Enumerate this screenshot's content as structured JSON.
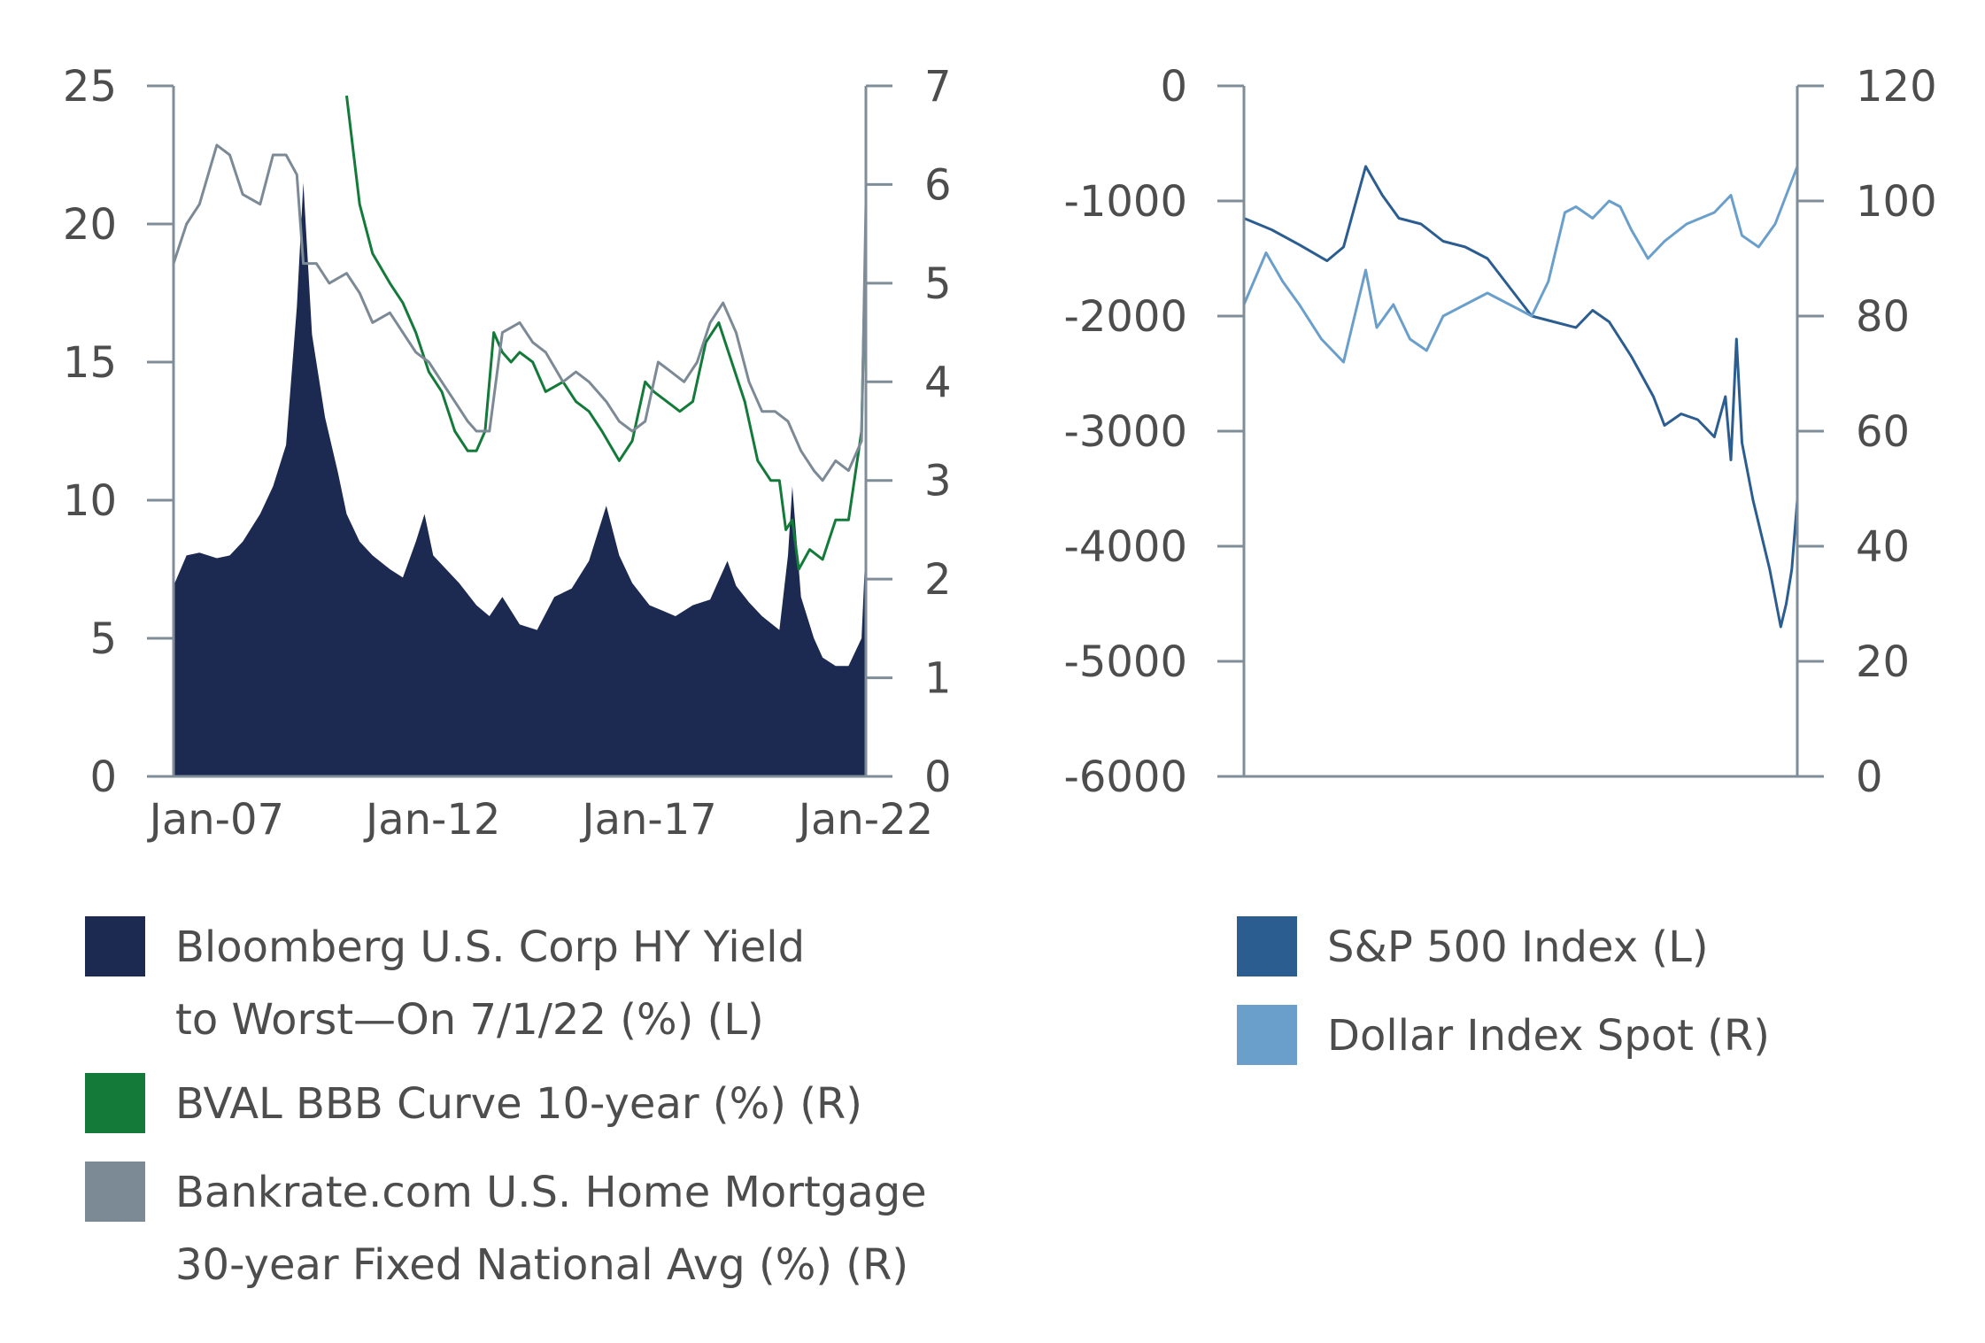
{
  "chart_data": [
    {
      "type": "area",
      "panel": "left",
      "title": "",
      "xlabel": "",
      "ylabel_left": "",
      "ylabel_right": "",
      "x_ticks": [
        "Jan-07",
        "Jan-12",
        "Jan-17",
        "Jan-22"
      ],
      "x_tick_years": [
        2007,
        2012,
        2017,
        2022
      ],
      "xlim": [
        2006.0,
        2022.0
      ],
      "ylim_left": [
        0,
        25
      ],
      "yticks_left": [
        "0",
        "5",
        "10",
        "15",
        "20",
        "25"
      ],
      "ylim_right": [
        0,
        7
      ],
      "yticks_right": [
        "0",
        "1",
        "2",
        "3",
        "4",
        "5",
        "6",
        "7"
      ],
      "series": [
        {
          "name": "Bloomberg U.S. Corp HY Yield to Worst—On 7/1/22 (%) (L)",
          "axis": "left",
          "style": "area",
          "color": "#1c2a52",
          "x": [
            2006.0,
            2006.3,
            2006.6,
            2007.0,
            2007.3,
            2007.6,
            2008.0,
            2008.3,
            2008.6,
            2008.85,
            2009.0,
            2009.2,
            2009.5,
            2009.8,
            2010.0,
            2010.3,
            2010.6,
            2011.0,
            2011.3,
            2011.6,
            2011.8,
            2012.0,
            2012.3,
            2012.6,
            2013.0,
            2013.3,
            2013.6,
            2014.0,
            2014.4,
            2014.8,
            2015.2,
            2015.6,
            2016.0,
            2016.3,
            2016.6,
            2017.0,
            2017.3,
            2017.6,
            2018.0,
            2018.4,
            2018.8,
            2019.0,
            2019.3,
            2019.6,
            2020.0,
            2020.2,
            2020.3,
            2020.5,
            2020.8,
            2021.0,
            2021.3,
            2021.6,
            2021.9,
            2022.0
          ],
          "values": [
            6.9,
            8.0,
            8.1,
            7.9,
            8.0,
            8.5,
            9.5,
            10.5,
            12.0,
            17.0,
            21.5,
            16.0,
            13.0,
            11.0,
            9.5,
            8.5,
            8.0,
            7.5,
            7.2,
            8.5,
            9.5,
            8.0,
            7.5,
            7.0,
            6.2,
            5.8,
            6.5,
            5.5,
            5.3,
            6.5,
            6.8,
            7.8,
            9.8,
            8.0,
            7.0,
            6.2,
            6.0,
            5.8,
            6.2,
            6.4,
            7.8,
            6.9,
            6.3,
            5.8,
            5.3,
            8.0,
            10.5,
            6.5,
            5.0,
            4.3,
            4.0,
            4.0,
            5.0,
            8.5
          ]
        },
        {
          "name": "BVAL BBB Curve 10-year (%) (R)",
          "axis": "right",
          "style": "line",
          "color": "#137a3a",
          "x": [
            2010.0,
            2010.3,
            2010.6,
            2011.0,
            2011.3,
            2011.6,
            2011.9,
            2012.2,
            2012.5,
            2012.8,
            2013.0,
            2013.2,
            2013.4,
            2013.6,
            2013.8,
            2014.0,
            2014.3,
            2014.6,
            2015.0,
            2015.3,
            2015.6,
            2015.9,
            2016.3,
            2016.6,
            2016.9,
            2017.1,
            2017.4,
            2017.7,
            2018.0,
            2018.3,
            2018.6,
            2018.9,
            2019.2,
            2019.5,
            2019.8,
            2020.0,
            2020.15,
            2020.3,
            2020.45,
            2020.7,
            2021.0,
            2021.3,
            2021.6,
            2021.9,
            2022.0
          ],
          "values": [
            6.9,
            5.8,
            5.3,
            5.0,
            4.8,
            4.5,
            4.1,
            3.9,
            3.5,
            3.3,
            3.3,
            3.5,
            4.5,
            4.3,
            4.2,
            4.3,
            4.2,
            3.9,
            4.0,
            3.8,
            3.7,
            3.5,
            3.2,
            3.4,
            4.0,
            3.9,
            3.8,
            3.7,
            3.8,
            4.4,
            4.6,
            4.2,
            3.8,
            3.2,
            3.0,
            3.0,
            2.5,
            2.6,
            2.1,
            2.3,
            2.2,
            2.6,
            2.6,
            3.5,
            5.5
          ]
        },
        {
          "name": "Bankrate.com U.S. Home Mortgage 30-year Fixed National Avg (%) (R)",
          "axis": "right",
          "style": "line",
          "color": "#7c8a96",
          "x": [
            2006.0,
            2006.3,
            2006.6,
            2007.0,
            2007.3,
            2007.6,
            2008.0,
            2008.3,
            2008.6,
            2008.85,
            2009.0,
            2009.3,
            2009.6,
            2010.0,
            2010.3,
            2010.6,
            2011.0,
            2011.3,
            2011.6,
            2011.9,
            2012.2,
            2012.5,
            2012.8,
            2013.0,
            2013.3,
            2013.6,
            2014.0,
            2014.3,
            2014.6,
            2015.0,
            2015.3,
            2015.6,
            2016.0,
            2016.3,
            2016.6,
            2016.9,
            2017.2,
            2017.5,
            2017.8,
            2018.1,
            2018.4,
            2018.7,
            2019.0,
            2019.3,
            2019.6,
            2019.9,
            2020.2,
            2020.5,
            2020.8,
            2021.0,
            2021.3,
            2021.6,
            2021.9,
            2022.0
          ],
          "values": [
            5.2,
            5.6,
            5.8,
            6.4,
            6.3,
            5.9,
            5.8,
            6.3,
            6.3,
            6.1,
            5.2,
            5.2,
            5.0,
            5.1,
            4.9,
            4.6,
            4.7,
            4.5,
            4.3,
            4.2,
            4.0,
            3.8,
            3.6,
            3.5,
            3.5,
            4.5,
            4.6,
            4.4,
            4.3,
            4.0,
            4.1,
            4.0,
            3.8,
            3.6,
            3.5,
            3.6,
            4.2,
            4.1,
            4.0,
            4.2,
            4.6,
            4.8,
            4.5,
            4.0,
            3.7,
            3.7,
            3.6,
            3.3,
            3.1,
            3.0,
            3.2,
            3.1,
            3.4,
            5.8
          ]
        }
      ]
    },
    {
      "type": "line",
      "panel": "right",
      "title": "",
      "xlabel": "",
      "ylabel_left": "",
      "ylabel_right": "",
      "x_ticks": [],
      "xlim": [
        0,
        1
      ],
      "ylim_left": [
        -6000,
        0
      ],
      "yticks_left": [
        "0",
        "-1000",
        "-2000",
        "-3000",
        "-4000",
        "-5000",
        "-6000"
      ],
      "ylim_right": [
        0,
        120
      ],
      "yticks_right": [
        "120",
        "100",
        "80",
        "60",
        "40",
        "20",
        "0"
      ],
      "series": [
        {
          "name": "S&P 500 Index (L)",
          "axis": "left",
          "style": "line",
          "color": "#2b5d91",
          "x": [
            0.0,
            0.05,
            0.1,
            0.15,
            0.18,
            0.2,
            0.22,
            0.25,
            0.28,
            0.32,
            0.36,
            0.4,
            0.44,
            0.48,
            0.52,
            0.56,
            0.6,
            0.63,
            0.66,
            0.7,
            0.74,
            0.76,
            0.79,
            0.82,
            0.85,
            0.87,
            0.88,
            0.89,
            0.9,
            0.92,
            0.95,
            0.97,
            0.98,
            0.99,
            1.0
          ],
          "values": [
            -1150,
            -1250,
            -1380,
            -1520,
            -1400,
            -1050,
            -700,
            -950,
            -1150,
            -1200,
            -1350,
            -1400,
            -1500,
            -1750,
            -2000,
            -2050,
            -2100,
            -1950,
            -2050,
            -2350,
            -2700,
            -2950,
            -2850,
            -2900,
            -3050,
            -2700,
            -3250,
            -2200,
            -3100,
            -3600,
            -4200,
            -4700,
            -4500,
            -4200,
            -3600
          ]
        },
        {
          "name": "Dollar Index Spot (R)",
          "axis": "right",
          "style": "line",
          "color": "#6b9fcb",
          "x": [
            0.0,
            0.04,
            0.07,
            0.1,
            0.14,
            0.18,
            0.2,
            0.22,
            0.24,
            0.27,
            0.3,
            0.33,
            0.36,
            0.4,
            0.44,
            0.48,
            0.52,
            0.55,
            0.58,
            0.6,
            0.63,
            0.66,
            0.68,
            0.7,
            0.73,
            0.76,
            0.8,
            0.85,
            0.88,
            0.9,
            0.93,
            0.96,
            1.0
          ],
          "values": [
            82,
            91,
            86,
            82,
            76,
            72,
            80,
            88,
            78,
            82,
            76,
            74,
            80,
            82,
            84,
            82,
            80,
            86,
            98,
            99,
            97,
            100,
            99,
            95,
            90,
            93,
            96,
            98,
            101,
            94,
            92,
            96,
            106
          ]
        }
      ]
    }
  ],
  "legend": {
    "left": [
      {
        "key": "hy",
        "color": "#1c2a52",
        "line1": "Bloomberg U.S. Corp HY Yield",
        "line2": "to Worst—On 7/1/22 (%) (L)"
      },
      {
        "key": "bbb",
        "color": "#137a3a",
        "line1": "BVAL BBB Curve 10-year (%) (R)",
        "line2": ""
      },
      {
        "key": "mortgage",
        "color": "#7c8a96",
        "line1": "Bankrate.com U.S. Home Mortgage",
        "line2": "30-year Fixed National Avg (%) (R)"
      }
    ],
    "right": [
      {
        "key": "sp500",
        "color": "#2b5d91",
        "line1": "S&P 500 Index (L)",
        "line2": ""
      },
      {
        "key": "dxy",
        "color": "#6b9fcb",
        "line1": "Dollar Index Spot (R)",
        "line2": ""
      }
    ]
  },
  "colors": {
    "axis": "#7f8d98",
    "text": "#4d4d4d"
  }
}
